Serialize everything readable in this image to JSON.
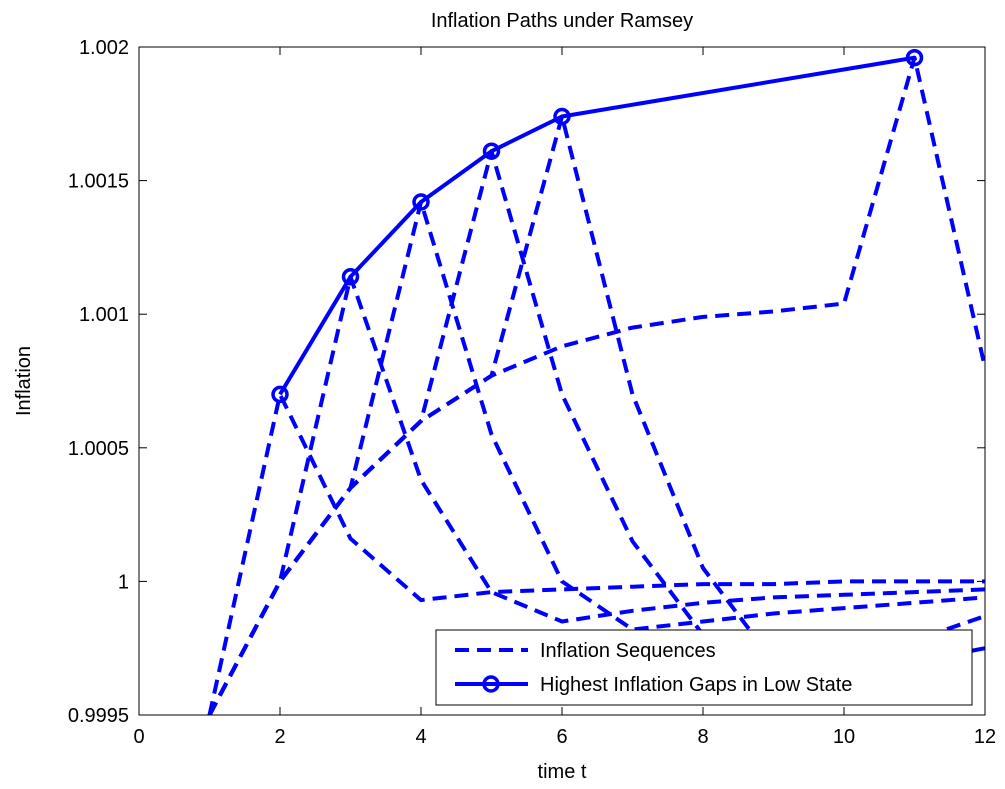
{
  "chart_data": {
    "type": "line",
    "title": "Inflation Paths under Ramsey",
    "xlabel": "time t",
    "ylabel": "Inflation",
    "xlim": [
      0,
      12
    ],
    "ylim": [
      0.9995,
      1.002
    ],
    "xticks": [
      0,
      2,
      4,
      6,
      8,
      10,
      12
    ],
    "xtick_labels": [
      "0",
      "2",
      "4",
      "6",
      "8",
      "10",
      "12"
    ],
    "yticks": [
      0.9995,
      1.0,
      1.0005,
      1.001,
      1.0015,
      1.002
    ],
    "ytick_labels": [
      "0.9995",
      "1",
      "1.0005",
      "1.001",
      "1.0015",
      "1.002"
    ],
    "grid": false,
    "legend_position": "bottom-right",
    "line_color": "#0000ff",
    "legend": [
      {
        "label": "Inflation Sequences",
        "style": "dashed"
      },
      {
        "label": "Highest Inflation Gaps in Low State",
        "style": "solid-circle"
      }
    ],
    "series": [
      {
        "style": "dashed",
        "x": [
          1,
          2,
          3,
          4,
          5,
          6,
          7,
          8,
          9,
          10,
          11,
          12
        ],
        "y": [
          0.9995,
          1.0007,
          1.00016,
          0.99993,
          0.99996,
          0.99997,
          0.99998,
          0.99999,
          0.99999,
          1.0,
          1.0,
          1.0
        ]
      },
      {
        "style": "dashed",
        "x": [
          1,
          2,
          3,
          4,
          5,
          6,
          7,
          8,
          9,
          10,
          11,
          12
        ],
        "y": [
          0.9995,
          1.0,
          1.00114,
          1.00038,
          0.99996,
          0.99985,
          0.99989,
          0.99992,
          0.99994,
          0.99995,
          0.99996,
          0.99997
        ]
      },
      {
        "style": "dashed",
        "x": [
          1,
          2,
          3,
          4,
          5,
          6,
          7,
          8,
          9,
          10,
          11,
          12
        ],
        "y": [
          0.9995,
          1.0,
          1.00035,
          1.00142,
          1.00055,
          1.0,
          0.99982,
          0.99985,
          0.99988,
          0.9999,
          0.99992,
          0.99994
        ]
      },
      {
        "style": "dashed",
        "x": [
          1,
          2,
          3,
          4,
          5,
          6,
          7,
          8,
          9,
          10,
          11,
          12
        ],
        "y": [
          0.9995,
          1.0,
          1.00035,
          1.0006,
          1.00161,
          1.0007,
          1.00015,
          0.9998,
          0.9997,
          0.99975,
          0.99978,
          0.99987
        ]
      },
      {
        "style": "dashed",
        "x": [
          1,
          2,
          3,
          4,
          5,
          6,
          7,
          8,
          9,
          10,
          11,
          12
        ],
        "y": [
          0.9995,
          1.0,
          1.00035,
          1.0006,
          1.00077,
          1.00174,
          1.0007,
          1.00005,
          0.9997,
          0.9996,
          0.9997,
          0.99975
        ]
      },
      {
        "style": "dashed",
        "x": [
          1,
          2,
          3,
          4,
          5,
          6,
          7,
          8,
          9,
          10,
          11,
          12
        ],
        "y": [
          0.9995,
          1.0,
          1.00035,
          1.0006,
          1.00077,
          1.00088,
          1.00095,
          1.00099,
          1.00101,
          1.00104,
          1.00196,
          1.0008
        ]
      },
      {
        "style": "solid-circle",
        "x": [
          2,
          3,
          4,
          5,
          6,
          11
        ],
        "y": [
          1.0007,
          1.00114,
          1.00142,
          1.00161,
          1.00174,
          1.00196
        ]
      }
    ]
  }
}
